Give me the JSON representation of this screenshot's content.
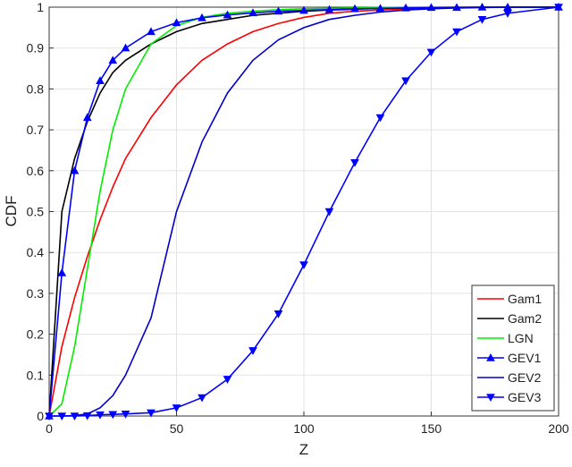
{
  "chart_data": {
    "type": "line",
    "xlabel": "Z",
    "ylabel": "CDF",
    "x": [
      0,
      5,
      10,
      15,
      20,
      25,
      30,
      40,
      50,
      60,
      70,
      80,
      90,
      100,
      110,
      120,
      130,
      140,
      150,
      160,
      170,
      180,
      200
    ],
    "series": [
      {
        "name": "Gam1",
        "color": "#ff0000",
        "values": [
          0,
          0.17,
          0.29,
          0.39,
          0.48,
          0.56,
          0.63,
          0.73,
          0.81,
          0.87,
          0.91,
          0.94,
          0.96,
          0.975,
          0.985,
          0.99,
          0.993,
          0.996,
          0.998,
          0.999,
          1,
          1,
          1
        ]
      },
      {
        "name": "Gam2",
        "color": "#000000",
        "values": [
          0,
          0.5,
          0.63,
          0.72,
          0.79,
          0.84,
          0.87,
          0.91,
          0.94,
          0.96,
          0.97,
          0.98,
          0.985,
          0.99,
          0.993,
          0.995,
          0.997,
          0.998,
          0.999,
          1,
          1,
          1,
          1
        ]
      },
      {
        "name": "LGN",
        "color": "#00ee00",
        "values": [
          0,
          0.03,
          0.17,
          0.36,
          0.55,
          0.7,
          0.8,
          0.91,
          0.955,
          0.975,
          0.985,
          0.99,
          0.994,
          0.996,
          0.997,
          0.998,
          0.999,
          1,
          1,
          1,
          1,
          1,
          1
        ]
      },
      {
        "name": "GEV1",
        "color": "#0000ff",
        "marker": "^",
        "values": [
          0,
          0.35,
          0.6,
          0.73,
          0.82,
          0.87,
          0.9,
          0.94,
          0.962,
          0.974,
          0.981,
          0.986,
          0.99,
          0.992,
          0.994,
          0.996,
          0.997,
          0.998,
          0.999,
          0.999,
          1,
          1,
          1
        ]
      },
      {
        "name": "GEV2",
        "color": "#0000cc",
        "values": [
          0,
          0,
          0.001,
          0.005,
          0.02,
          0.05,
          0.1,
          0.24,
          0.5,
          0.67,
          0.79,
          0.87,
          0.92,
          0.95,
          0.97,
          0.98,
          0.988,
          0.993,
          0.996,
          0.998,
          0.999,
          1,
          1
        ]
      },
      {
        "name": "GEV3",
        "color": "#0000ff",
        "marker": "v",
        "values": [
          0,
          0,
          0,
          0.001,
          0.003,
          0.004,
          0.005,
          0.008,
          0.02,
          0.045,
          0.09,
          0.16,
          0.25,
          0.37,
          0.5,
          0.62,
          0.73,
          0.82,
          0.89,
          0.94,
          0.97,
          0.985,
          1
        ]
      }
    ],
    "xlim": [
      0,
      200
    ],
    "xticks": [
      0,
      50,
      100,
      150,
      200
    ],
    "ylim": [
      0,
      1
    ],
    "yticks": [
      0,
      0.1,
      0.2,
      0.3,
      0.4,
      0.5,
      0.6,
      0.7,
      0.8,
      0.9,
      1
    ],
    "grid": true,
    "legend": "lower right"
  }
}
